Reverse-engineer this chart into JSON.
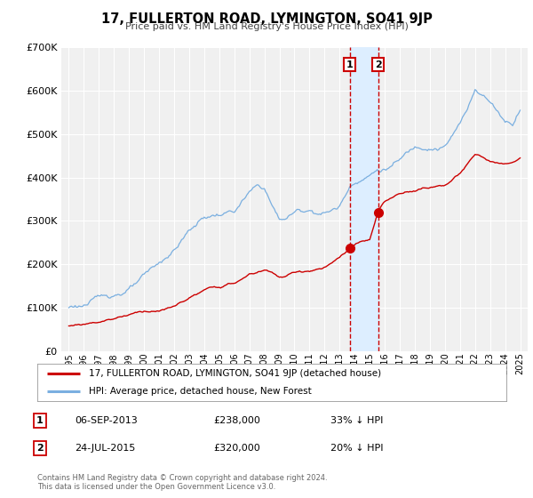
{
  "title": "17, FULLERTON ROAD, LYMINGTON, SO41 9JP",
  "subtitle": "Price paid vs. HM Land Registry's House Price Index (HPI)",
  "legend_line1": "17, FULLERTON ROAD, LYMINGTON, SO41 9JP (detached house)",
  "legend_line2": "HPI: Average price, detached house, New Forest",
  "sale1_label": "1",
  "sale1_date": "06-SEP-2013",
  "sale1_price": 238000,
  "sale1_hpi_text": "33% ↓ HPI",
  "sale1_x": 2013.67,
  "sale1_y": 238000,
  "sale2_label": "2",
  "sale2_date": "24-JUL-2015",
  "sale2_price": 320000,
  "sale2_hpi_text": "20% ↓ HPI",
  "sale2_x": 2015.56,
  "sale2_y": 320000,
  "footer1": "Contains HM Land Registry data © Crown copyright and database right 2024.",
  "footer2": "This data is licensed under the Open Government Licence v3.0.",
  "red_color": "#cc0000",
  "blue_color": "#7aafe0",
  "highlight_color": "#ddeeff",
  "grid_color": "white",
  "bg_color": "#f0f0f0",
  "ylim": [
    0,
    700000
  ],
  "ytick_vals": [
    0,
    100000,
    200000,
    300000,
    400000,
    500000,
    600000,
    700000
  ],
  "ytick_labels": [
    "£0",
    "£100K",
    "£200K",
    "£300K",
    "£400K",
    "£500K",
    "£600K",
    "£700K"
  ],
  "xmin": 1994.5,
  "xmax": 2025.5
}
